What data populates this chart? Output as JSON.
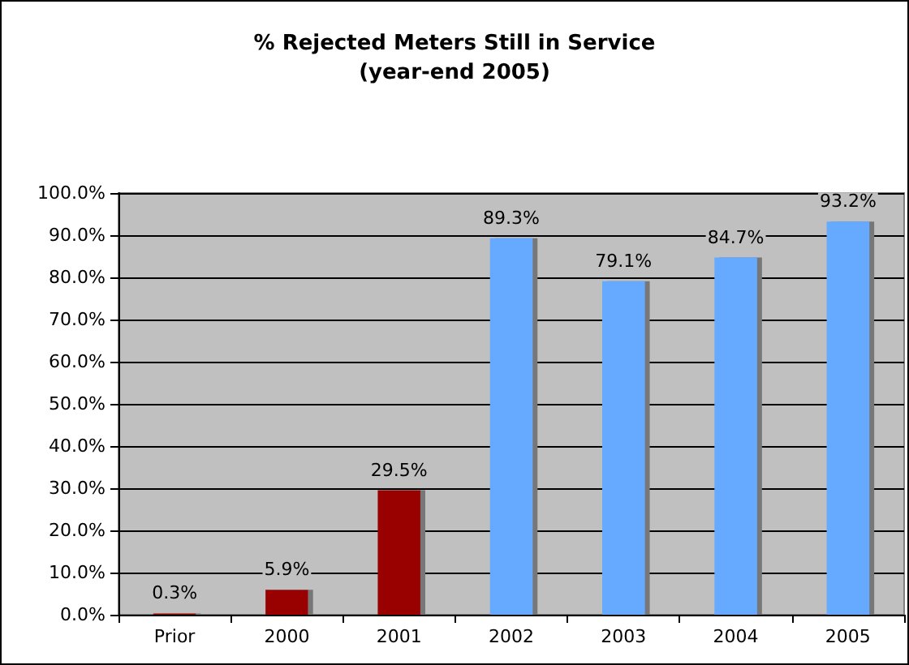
{
  "chart_data": {
    "type": "bar",
    "title": "% Rejected Meters Still in Service\n(year-end 2005)",
    "categories": [
      "Prior",
      "2000",
      "2001",
      "2002",
      "2003",
      "2004",
      "2005"
    ],
    "values": [
      0.3,
      5.9,
      29.5,
      89.3,
      79.1,
      84.7,
      93.2
    ],
    "colors": [
      "#990000",
      "#990000",
      "#990000",
      "#66aaff",
      "#66aaff",
      "#66aaff",
      "#66aaff"
    ],
    "value_labels": [
      "0.3%",
      "5.9%",
      "29.5%",
      "89.3%",
      "79.1%",
      "84.7%",
      "93.2%"
    ],
    "ylim": [
      0,
      100
    ],
    "yticks": [
      {
        "value": 0,
        "label": "0.0%"
      },
      {
        "value": 10,
        "label": "10.0%"
      },
      {
        "value": 20,
        "label": "20.0%"
      },
      {
        "value": 30,
        "label": "30.0%"
      },
      {
        "value": 40,
        "label": "40.0%"
      },
      {
        "value": 50,
        "label": "50.0%"
      },
      {
        "value": 60,
        "label": "60.0%"
      },
      {
        "value": 70,
        "label": "70.0%"
      },
      {
        "value": 80,
        "label": "80.0%"
      },
      {
        "value": 90,
        "label": "90.0%"
      },
      {
        "value": 100,
        "label": "100.0%"
      }
    ],
    "grid": "y"
  }
}
